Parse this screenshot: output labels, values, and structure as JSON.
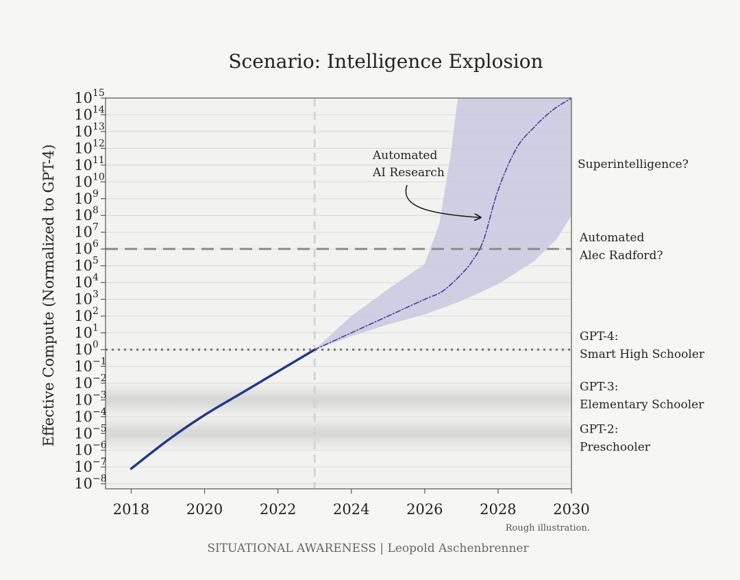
{
  "chart_data": {
    "type": "line",
    "title": "Scenario: Intelligence Explosion",
    "ylabel": "Effective Compute (Normalized to GPT-4)",
    "xlabel": "",
    "y_scale": "log10",
    "xlim": [
      2017.3,
      2030
    ],
    "ylim_exponent": [
      -8.3,
      15
    ],
    "x_ticks": [
      "2018",
      "2020",
      "2022",
      "2024",
      "2026",
      "2028",
      "2030"
    ],
    "y_tick_exponents": [
      "-8",
      "-7",
      "-6",
      "-5",
      "-4",
      "-3",
      "-2",
      "-1",
      "0",
      "1",
      "2",
      "3",
      "4",
      "5",
      "6",
      "7",
      "8",
      "9",
      "10",
      "11",
      "12",
      "13",
      "14",
      "15"
    ],
    "y_tick_base": "10",
    "vertical_marker_x": 2023,
    "series": [
      {
        "style": "solid",
        "color": "#1f3a8a",
        "x": [
          2018,
          2019,
          2020,
          2021,
          2022,
          2023
        ],
        "log10_y": [
          -7.1,
          -5.4,
          -3.9,
          -2.6,
          -1.3,
          0
        ]
      },
      {
        "style": "dash-dot",
        "color": "#3a3f9a",
        "x": [
          2023,
          2024,
          2025,
          2026,
          2026.5,
          2027,
          2027.3,
          2027.6,
          2028,
          2028.5,
          2029,
          2029.5,
          2030
        ],
        "log10_y": [
          0,
          1,
          2,
          3,
          3.5,
          4.5,
          5.3,
          6.5,
          9.5,
          12,
          13.3,
          14.3,
          15
        ]
      }
    ],
    "uncertainty_band": {
      "color": "#c9c8e0",
      "x_upper": [
        2023,
        2024,
        2025,
        2026,
        2026.4,
        2026.7,
        2026.9,
        2030
      ],
      "log10_upper": [
        0,
        2,
        3.6,
        5.1,
        7.5,
        11.5,
        15,
        15
      ],
      "x_lower": [
        2023,
        2024,
        2025,
        2026,
        2027,
        2028,
        2029,
        2029.6,
        2030
      ],
      "log10_lower": [
        0,
        0.8,
        1.5,
        2.1,
        2.9,
        3.9,
        5.3,
        6.6,
        8
      ]
    },
    "reference_lines": [
      {
        "log10_y": 6,
        "style": "dashed",
        "color": "#8a8a8a",
        "label_lines": [
          "Automated",
          "Alec Radford?"
        ]
      },
      {
        "log10_y": 0,
        "style": "dotted",
        "color": "#707070",
        "label_lines": [
          "GPT-4:",
          "Smart High Schooler"
        ]
      }
    ],
    "shaded_bands": [
      {
        "center_log10": -3,
        "label_lines": [
          "GPT-3:",
          "Elementary Schooler"
        ]
      },
      {
        "center_log10": -5,
        "label_lines": [
          "GPT-2:",
          "Preschooler"
        ]
      }
    ],
    "right_labels": [
      {
        "log10_y": 11,
        "text": "Superintelligence?"
      }
    ],
    "annotation": {
      "lines": [
        "Automated",
        "AI Research"
      ],
      "arrow_to_x": 2027.6,
      "arrow_to_log10": 8
    },
    "note": "Rough illustration.",
    "credit": "SITUATIONAL AWARENESS | Leopold Aschenbrenner",
    "grid": true
  }
}
